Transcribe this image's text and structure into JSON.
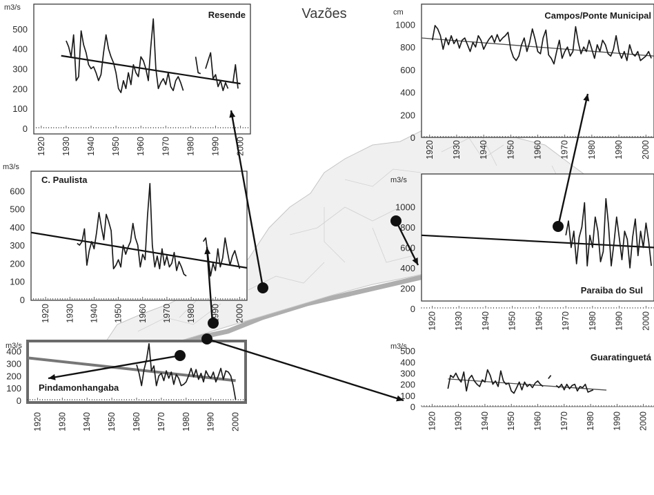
{
  "title": "Vazões",
  "chart_data": [
    {
      "type": "line",
      "id": "resende",
      "title": "Resende",
      "unit": "m3/s",
      "ylim": [
        0,
        600
      ],
      "yticks": [
        0,
        100,
        200,
        300,
        400,
        500
      ],
      "xlim": [
        1917,
        2004
      ],
      "xticks": [
        1920,
        1930,
        1940,
        1950,
        1960,
        1970,
        1980,
        1990,
        2000
      ],
      "series": [
        {
          "x": [
            1930,
            1931,
            1932,
            1933,
            1934,
            1935,
            1936,
            1937,
            1938,
            1939,
            1940,
            1941,
            1942,
            1943,
            1944,
            1945,
            1946,
            1947,
            1948,
            1949,
            1950,
            1951,
            1952,
            1953,
            1954,
            1955,
            1956,
            1957,
            1958,
            1959,
            1960,
            1961,
            1962,
            1963,
            1964,
            1965,
            1966,
            1967,
            1968,
            1969,
            1970,
            1971,
            1972,
            1973,
            1974,
            1975,
            1976,
            1977
          ],
          "y": [
            440,
            410,
            360,
            470,
            240,
            260,
            490,
            420,
            380,
            320,
            300,
            310,
            280,
            240,
            270,
            380,
            470,
            400,
            360,
            330,
            280,
            200,
            180,
            240,
            200,
            280,
            220,
            320,
            280,
            260,
            360,
            340,
            300,
            240,
            410,
            550,
            300,
            200,
            230,
            250,
            220,
            280,
            210,
            190,
            240,
            260,
            230,
            190
          ]
        },
        {
          "x": [
            1982,
            1983,
            1984
          ],
          "y": [
            360,
            280,
            275
          ]
        },
        {
          "x": [
            1986,
            1987,
            1988,
            1989,
            1990,
            1991,
            1992,
            1993,
            1994,
            1995
          ],
          "y": [
            300,
            340,
            380,
            250,
            270,
            210,
            240,
            190,
            230,
            200
          ]
        },
        {
          "x": [
            1997,
            1998,
            1999
          ],
          "y": [
            230,
            320,
            200
          ]
        }
      ],
      "trend": {
        "x": [
          1928,
          2000
        ],
        "y": [
          365,
          225
        ]
      }
    },
    {
      "type": "line",
      "id": "campos",
      "title": "Campos/Ponte Municipal",
      "unit": "cm",
      "ylim": [
        0,
        1100
      ],
      "yticks": [
        0,
        200,
        400,
        600,
        800,
        1000
      ],
      "xlim": [
        1917,
        2003
      ],
      "xticks": [
        1920,
        1930,
        1940,
        1950,
        1960,
        1970,
        1980,
        1990,
        2000
      ],
      "series": [
        {
          "x": [
            1921,
            1922,
            1923,
            1924,
            1925,
            1926,
            1927,
            1928,
            1929,
            1930,
            1931,
            1932,
            1933,
            1934,
            1935,
            1936,
            1937,
            1938,
            1939,
            1940,
            1941,
            1942,
            1943,
            1944,
            1945,
            1946,
            1947,
            1948,
            1949,
            1950,
            1951,
            1952,
            1953,
            1954,
            1955,
            1956,
            1957,
            1958,
            1959,
            1960,
            1961,
            1962,
            1963,
            1964,
            1965,
            1966,
            1967,
            1968,
            1969,
            1970,
            1971,
            1972,
            1973,
            1974,
            1975,
            1976,
            1977,
            1978,
            1979,
            1980,
            1981,
            1982,
            1983,
            1984,
            1985,
            1986,
            1987,
            1988,
            1989,
            1990,
            1991,
            1992,
            1993,
            1994,
            1995,
            1996,
            1997,
            1998,
            1999,
            2000,
            2001,
            2002
          ],
          "y": [
            860,
            990,
            960,
            900,
            780,
            880,
            820,
            900,
            830,
            870,
            790,
            860,
            880,
            820,
            760,
            840,
            800,
            900,
            860,
            780,
            830,
            870,
            900,
            840,
            910,
            850,
            880,
            900,
            930,
            780,
            710,
            680,
            720,
            820,
            880,
            760,
            840,
            960,
            870,
            760,
            740,
            880,
            950,
            730,
            700,
            650,
            760,
            860,
            700,
            760,
            800,
            720,
            760,
            980,
            840,
            740,
            800,
            760,
            860,
            780,
            700,
            820,
            760,
            860,
            820,
            740,
            720,
            780,
            900,
            760,
            700,
            760,
            680,
            820,
            740,
            720,
            760,
            680,
            700,
            720,
            760,
            700
          ]
        }
      ],
      "trend": {
        "x": [
          1917,
          2003
        ],
        "y": [
          880,
          720
        ]
      }
    },
    {
      "type": "line",
      "id": "cpaulista",
      "title": "C. Paulista",
      "unit": "m3/s",
      "ylim": [
        0,
        700
      ],
      "yticks": [
        0,
        100,
        200,
        300,
        400,
        500,
        600
      ],
      "xlim": [
        1914,
        2003
      ],
      "xticks": [
        1920,
        1930,
        1940,
        1950,
        1960,
        1970,
        1980,
        1990,
        2000
      ],
      "series": [
        {
          "x": [
            1933,
            1934,
            1935,
            1936,
            1937,
            1938,
            1939,
            1940,
            1941,
            1942,
            1943,
            1944,
            1945,
            1946,
            1947,
            1948,
            1949,
            1950,
            1951,
            1952,
            1953,
            1954,
            1955,
            1956,
            1957,
            1958,
            1959,
            1960,
            1961,
            1962,
            1963,
            1964,
            1965,
            1966,
            1967,
            1968,
            1969,
            1970,
            1971,
            1972,
            1973,
            1974,
            1975,
            1976,
            1977,
            1978
          ],
          "y": [
            310,
            300,
            320,
            390,
            190,
            270,
            320,
            280,
            370,
            480,
            400,
            330,
            470,
            430,
            380,
            170,
            190,
            220,
            180,
            300,
            250,
            290,
            320,
            420,
            340,
            300,
            180,
            250,
            220,
            460,
            640,
            300,
            180,
            240,
            170,
            280,
            190,
            240,
            180,
            200,
            260,
            160,
            210,
            180,
            140,
            130
          ]
        },
        {
          "x": [
            1985,
            1986,
            1987,
            1988,
            1989,
            1990,
            1991,
            1992,
            1993,
            1994,
            1995,
            1996,
            1997,
            1998,
            1999,
            2000
          ],
          "y": [
            320,
            340,
            240,
            130,
            200,
            160,
            280,
            180,
            230,
            340,
            260,
            190,
            240,
            270,
            220,
            170
          ]
        }
      ],
      "trend": {
        "x": [
          1914,
          2003
        ],
        "y": [
          370,
          175
        ]
      }
    },
    {
      "type": "line",
      "id": "paraiba",
      "title": "Paraiba do Sul",
      "unit": "m3/s",
      "ylim": [
        0,
        1200
      ],
      "yticks": [
        0,
        200,
        400,
        600,
        800,
        1000
      ],
      "xlim": [
        1916,
        2003
      ],
      "xticks": [
        1920,
        1930,
        1940,
        1950,
        1960,
        1970,
        1980,
        1990,
        2000
      ],
      "series": [
        {
          "x": [
            1970,
            1971,
            1972,
            1973,
            1974,
            1975,
            1976,
            1977,
            1978,
            1979,
            1980,
            1981,
            1982,
            1983,
            1984,
            1985,
            1986,
            1987,
            1988,
            1989,
            1990,
            1991,
            1992,
            1993,
            1994,
            1995,
            1996,
            1997,
            1998,
            1999,
            2000,
            2001,
            2002
          ],
          "y": [
            720,
            860,
            600,
            760,
            440,
            700,
            800,
            1040,
            420,
            720,
            600,
            900,
            760,
            460,
            560,
            1080,
            820,
            420,
            640,
            900,
            700,
            480,
            760,
            680,
            400,
            700,
            880,
            520,
            760,
            600,
            840,
            660,
            420
          ]
        }
      ],
      "trend": {
        "x": [
          1916,
          2003
        ],
        "y": [
          720,
          600
        ]
      }
    },
    {
      "type": "line",
      "id": "guaratingueta",
      "title": "Guaratinguetá",
      "unit": "m3/s",
      "ylim": [
        0,
        550
      ],
      "yticks": [
        0,
        100,
        200,
        300,
        400,
        500
      ],
      "xlim": [
        1916,
        2004
      ],
      "xticks": [
        1920,
        1930,
        1940,
        1950,
        1960,
        1970,
        1980,
        1990,
        2000
      ],
      "series": [
        {
          "x": [
            1926,
            1927,
            1928,
            1929,
            1930,
            1931,
            1932,
            1933,
            1934,
            1935,
            1936,
            1937,
            1938,
            1939,
            1940,
            1941,
            1942,
            1943,
            1944,
            1945,
            1946,
            1947,
            1948,
            1949,
            1950,
            1951,
            1952,
            1953,
            1954,
            1955,
            1956,
            1957,
            1958,
            1959,
            1960,
            1961,
            1962
          ],
          "y": [
            160,
            280,
            260,
            300,
            250,
            220,
            310,
            140,
            250,
            280,
            230,
            200,
            180,
            240,
            220,
            330,
            280,
            200,
            230,
            180,
            320,
            230,
            200,
            210,
            140,
            120,
            170,
            220,
            150,
            220,
            180,
            200,
            170,
            210,
            230,
            200,
            180
          ]
        },
        {
          "x": [
            1964,
            1965
          ],
          "y": [
            250,
            280
          ]
        },
        {
          "x": [
            1967,
            1968,
            1969,
            1970,
            1971,
            1972,
            1973,
            1974,
            1975,
            1976,
            1977,
            1978,
            1979,
            1980,
            1981
          ],
          "y": [
            190,
            170,
            200,
            150,
            200,
            160,
            190,
            200,
            140,
            180,
            170,
            200,
            130,
            140,
            150
          ]
        }
      ],
      "trend": {
        "x": [
          1926,
          1986
        ],
        "y": [
          248,
          148
        ]
      }
    },
    {
      "type": "line",
      "id": "pindamonhangaba",
      "title": "Pindamonhangaba",
      "unit": "m3/s",
      "ylim": [
        0,
        470
      ],
      "yticks": [
        0,
        100,
        200,
        300,
        400
      ],
      "xlim": [
        1916,
        2004
      ],
      "xticks": [
        1920,
        1930,
        1940,
        1950,
        1960,
        1970,
        1980,
        1990,
        2000
      ],
      "series": [
        {
          "x": [
            1960,
            1961,
            1962,
            1963,
            1964,
            1965,
            1966,
            1967,
            1968,
            1969,
            1970,
            1971,
            1972,
            1973,
            1974,
            1975,
            1976,
            1977,
            1978,
            1979,
            1980,
            1981,
            1982,
            1983,
            1984,
            1985,
            1986,
            1987,
            1988,
            1989,
            1990,
            1991,
            1992,
            1993,
            1994,
            1995,
            1996,
            1997,
            1998,
            1999,
            2000
          ],
          "y": [
            290,
            220,
            120,
            250,
            330,
            460,
            240,
            280,
            120,
            200,
            220,
            160,
            240,
            180,
            230,
            130,
            210,
            180,
            120,
            130,
            150,
            200,
            260,
            190,
            250,
            170,
            220,
            150,
            240,
            200,
            180,
            230,
            150,
            200,
            260,
            170,
            240,
            230,
            200,
            120,
            5
          ]
        }
      ],
      "trend": {
        "x": [
          1916,
          2000
        ],
        "y": [
          345,
          160
        ]
      }
    }
  ]
}
